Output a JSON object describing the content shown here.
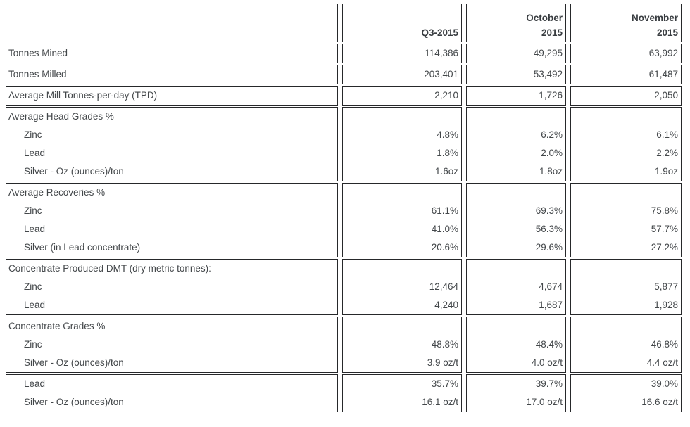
{
  "header": {
    "q3": "Q3-2015",
    "oct_line1": "October",
    "oct_line2": "2015",
    "nov_line1": "November",
    "nov_line2": "2015"
  },
  "colors": {
    "border": "#26282a",
    "text": "#43474a",
    "header_text": "#393d41",
    "background": "#ffffff"
  },
  "sections": [
    {
      "name": "tonnes-mined",
      "rows": [
        {
          "label": "Tonnes Mined",
          "q3": "114,386",
          "oct": "49,295",
          "nov": "63,992"
        }
      ]
    },
    {
      "name": "tonnes-milled",
      "rows": [
        {
          "label": "Tonnes Milled",
          "q3": "203,401",
          "oct": "53,492",
          "nov": "61,487"
        }
      ]
    },
    {
      "name": "average-mill-tpd",
      "rows": [
        {
          "label": "Average Mill Tonnes-per-day (TPD)",
          "q3": "2,210",
          "oct": "1,726",
          "nov": "2,050"
        }
      ]
    },
    {
      "name": "average-head-grades",
      "rows": [
        {
          "label": "Average Head Grades %",
          "q3": "",
          "oct": "",
          "nov": ""
        },
        {
          "label": "Zinc",
          "q3": "4.8%",
          "oct": "6.2%",
          "nov": "6.1%"
        },
        {
          "label": "Lead",
          "q3": "1.8%",
          "oct": "2.0%",
          "nov": "2.2%"
        },
        {
          "label": "Silver - Oz (ounces)/ton",
          "q3": "1.6oz",
          "oct": "1.8oz",
          "nov": "1.9oz"
        }
      ]
    },
    {
      "name": "average-recoveries",
      "rows": [
        {
          "label": "Average Recoveries %",
          "q3": "",
          "oct": "",
          "nov": ""
        },
        {
          "label": "Zinc",
          "q3": "61.1%",
          "oct": "69.3%",
          "nov": "75.8%"
        },
        {
          "label": "Lead",
          "q3": "41.0%",
          "oct": "56.3%",
          "nov": "57.7%"
        },
        {
          "label": "Silver (in Lead concentrate)",
          "q3": "20.6%",
          "oct": "29.6%",
          "nov": "27.2%"
        }
      ]
    },
    {
      "name": "concentrate-produced",
      "rows": [
        {
          "label": "Concentrate Produced DMT (dry metric tonnes):",
          "q3": "",
          "oct": "",
          "nov": ""
        },
        {
          "label": "Zinc",
          "q3": "12,464",
          "oct": "4,674",
          "nov": "5,877"
        },
        {
          "label": "Lead",
          "q3": "4,240",
          "oct": "1,687",
          "nov": "1,928"
        }
      ]
    },
    {
      "name": "concentrate-grades",
      "rows": [
        {
          "label": "Concentrate Grades %",
          "q3": "",
          "oct": "",
          "nov": ""
        },
        {
          "label": "Zinc",
          "q3": "48.8%",
          "oct": "48.4%",
          "nov": "46.8%"
        },
        {
          "label": "Silver - Oz (ounces)/ton",
          "q3": "3.9 oz/t",
          "oct": "4.0 oz/t",
          "nov": "4.4 oz/t"
        }
      ]
    },
    {
      "name": "concentrate-grades-lead",
      "rows": [
        {
          "label": "Lead",
          "q3": "35.7%",
          "oct": "39.7%",
          "nov": "39.0%"
        },
        {
          "label": "Silver - Oz (ounces)/ton",
          "q3": "16.1 oz/t",
          "oct": "17.0 oz/t",
          "nov": "16.6 oz/t"
        }
      ]
    }
  ]
}
